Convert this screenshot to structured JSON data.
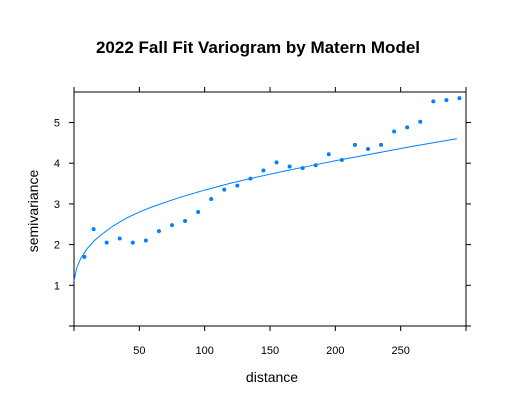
{
  "chart_data": {
    "type": "scatter",
    "title": "2022 Fall Fit Variogram by Matern Model",
    "xlabel": "distance",
    "ylabel": "semivariance",
    "xlim": [
      0,
      300
    ],
    "ylim": [
      0,
      5.75
    ],
    "x_ticks": [
      50,
      100,
      150,
      200,
      250
    ],
    "y_ticks": [
      1,
      2,
      3,
      4,
      5
    ],
    "colors": {
      "points": "#0080ff",
      "fit": "#0080ff"
    },
    "grid": false,
    "legend": "none",
    "series": [
      {
        "kind": "points",
        "x": [
          8,
          15,
          25,
          35,
          45,
          55,
          65,
          75,
          85,
          95,
          105,
          115,
          125,
          135,
          145,
          155,
          165,
          175,
          185,
          195,
          205,
          215,
          225,
          235,
          245,
          255,
          265,
          275,
          285,
          295
        ],
        "y": [
          1.7,
          2.38,
          2.05,
          2.15,
          2.05,
          2.1,
          2.33,
          2.48,
          2.58,
          2.8,
          3.12,
          3.35,
          3.45,
          3.62,
          3.82,
          4.02,
          3.92,
          3.88,
          3.95,
          4.22,
          4.08,
          4.45,
          4.35,
          4.45,
          4.78,
          4.88,
          5.02,
          5.52,
          5.55,
          5.6
        ]
      },
      {
        "kind": "fit",
        "model": "Matern",
        "x": [
          0,
          2,
          5,
          10,
          15,
          20,
          30,
          40,
          50,
          60,
          80,
          100,
          120,
          140,
          160,
          180,
          200,
          220,
          240,
          260,
          280,
          293
        ],
        "y": [
          1.1,
          1.42,
          1.65,
          1.9,
          2.08,
          2.22,
          2.46,
          2.65,
          2.8,
          2.93,
          3.15,
          3.34,
          3.51,
          3.66,
          3.8,
          3.93,
          4.06,
          4.18,
          4.3,
          4.42,
          4.53,
          4.6
        ]
      }
    ]
  }
}
